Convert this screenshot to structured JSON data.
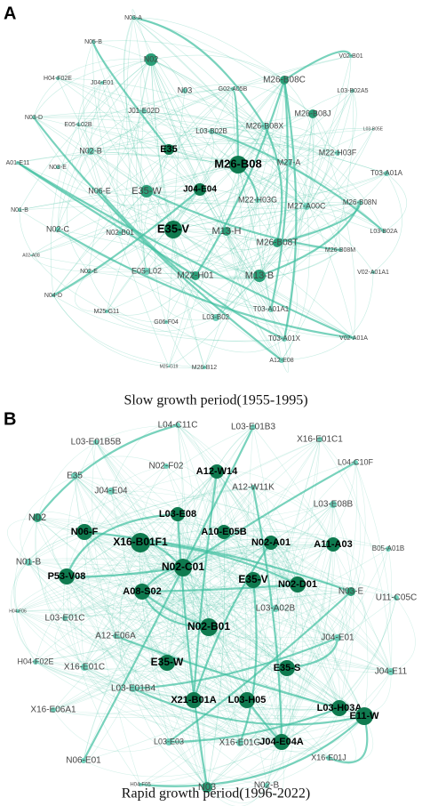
{
  "panels": [
    {
      "letter": "A",
      "caption": "Slow growth period(1955-1995)",
      "nodes": [
        "N03-A",
        "N05-B",
        "H04-F02E",
        "J04-E01",
        "N02",
        "N03",
        "G02-A05B",
        "M26-B08C",
        "V02-B01",
        "L03-B02A5",
        "L03-B05E",
        "N03-D",
        "E05-L02B",
        "J01-E02D",
        "L03-B02B",
        "M26-B08X",
        "M26-B08J",
        "A01-E11",
        "N03-E",
        "N02-B",
        "E35",
        "M22-H03F",
        "M26-B08",
        "M27-A",
        "T03-A01A",
        "N01-B",
        "N06-E",
        "E35-W",
        "J04-E04",
        "M22-H03G",
        "M27-A00C",
        "M26-B08N",
        "N02-C",
        "N02-B01",
        "E35-V",
        "M13-H",
        "L03-B02A",
        "M26-B08T",
        "A02-A08",
        "M26-B08M",
        "N02-E",
        "E05-L02",
        "M22-H01",
        "M13-B",
        "V02-A01A1",
        "N04-D",
        "T03-A01A1",
        "M25-G11",
        "G06-F04",
        "L03-B02",
        "T03-A01X",
        "V02-A01A",
        "M26-B12",
        "A12-E08",
        "M25-G19"
      ]
    },
    {
      "letter": "B",
      "caption": "Rapid growth period(1996-2022)",
      "nodes": [
        "L04-C11C",
        "L03-E01B3",
        "L03-E01B5B",
        "X16-E01C1",
        "N02-F02",
        "A12-W14",
        "L04-C10F",
        "E35",
        "J04-E04",
        "A12-W11K",
        "L03-E08B",
        "N02",
        "L03-E08",
        "N06-F",
        "A10-E05B",
        "X16-B01F1",
        "N02-A01",
        "A11-A03",
        "N01-B",
        "B05-A01B",
        "P53-V08",
        "N02-C01",
        "E35-V",
        "N02-D01",
        "N03-E",
        "U11-C05C",
        "A08-S02",
        "L03-A02B",
        "H04-F06",
        "L03-E01C",
        "A12-E06A",
        "N02-B01",
        "E35-W",
        "J04-E01",
        "H04-F02E",
        "X16-E01C",
        "E35-S",
        "J04-E11",
        "L03-E01B4",
        "X21-B01A",
        "L03-H05",
        "L03-H03A",
        "E11-W",
        "X16-E06A1",
        "L03-E03",
        "X16-E01G",
        "J04-E04A",
        "N06-E01",
        "X16-E01J",
        "H04-F05",
        "N03",
        "N02-B"
      ]
    }
  ]
}
